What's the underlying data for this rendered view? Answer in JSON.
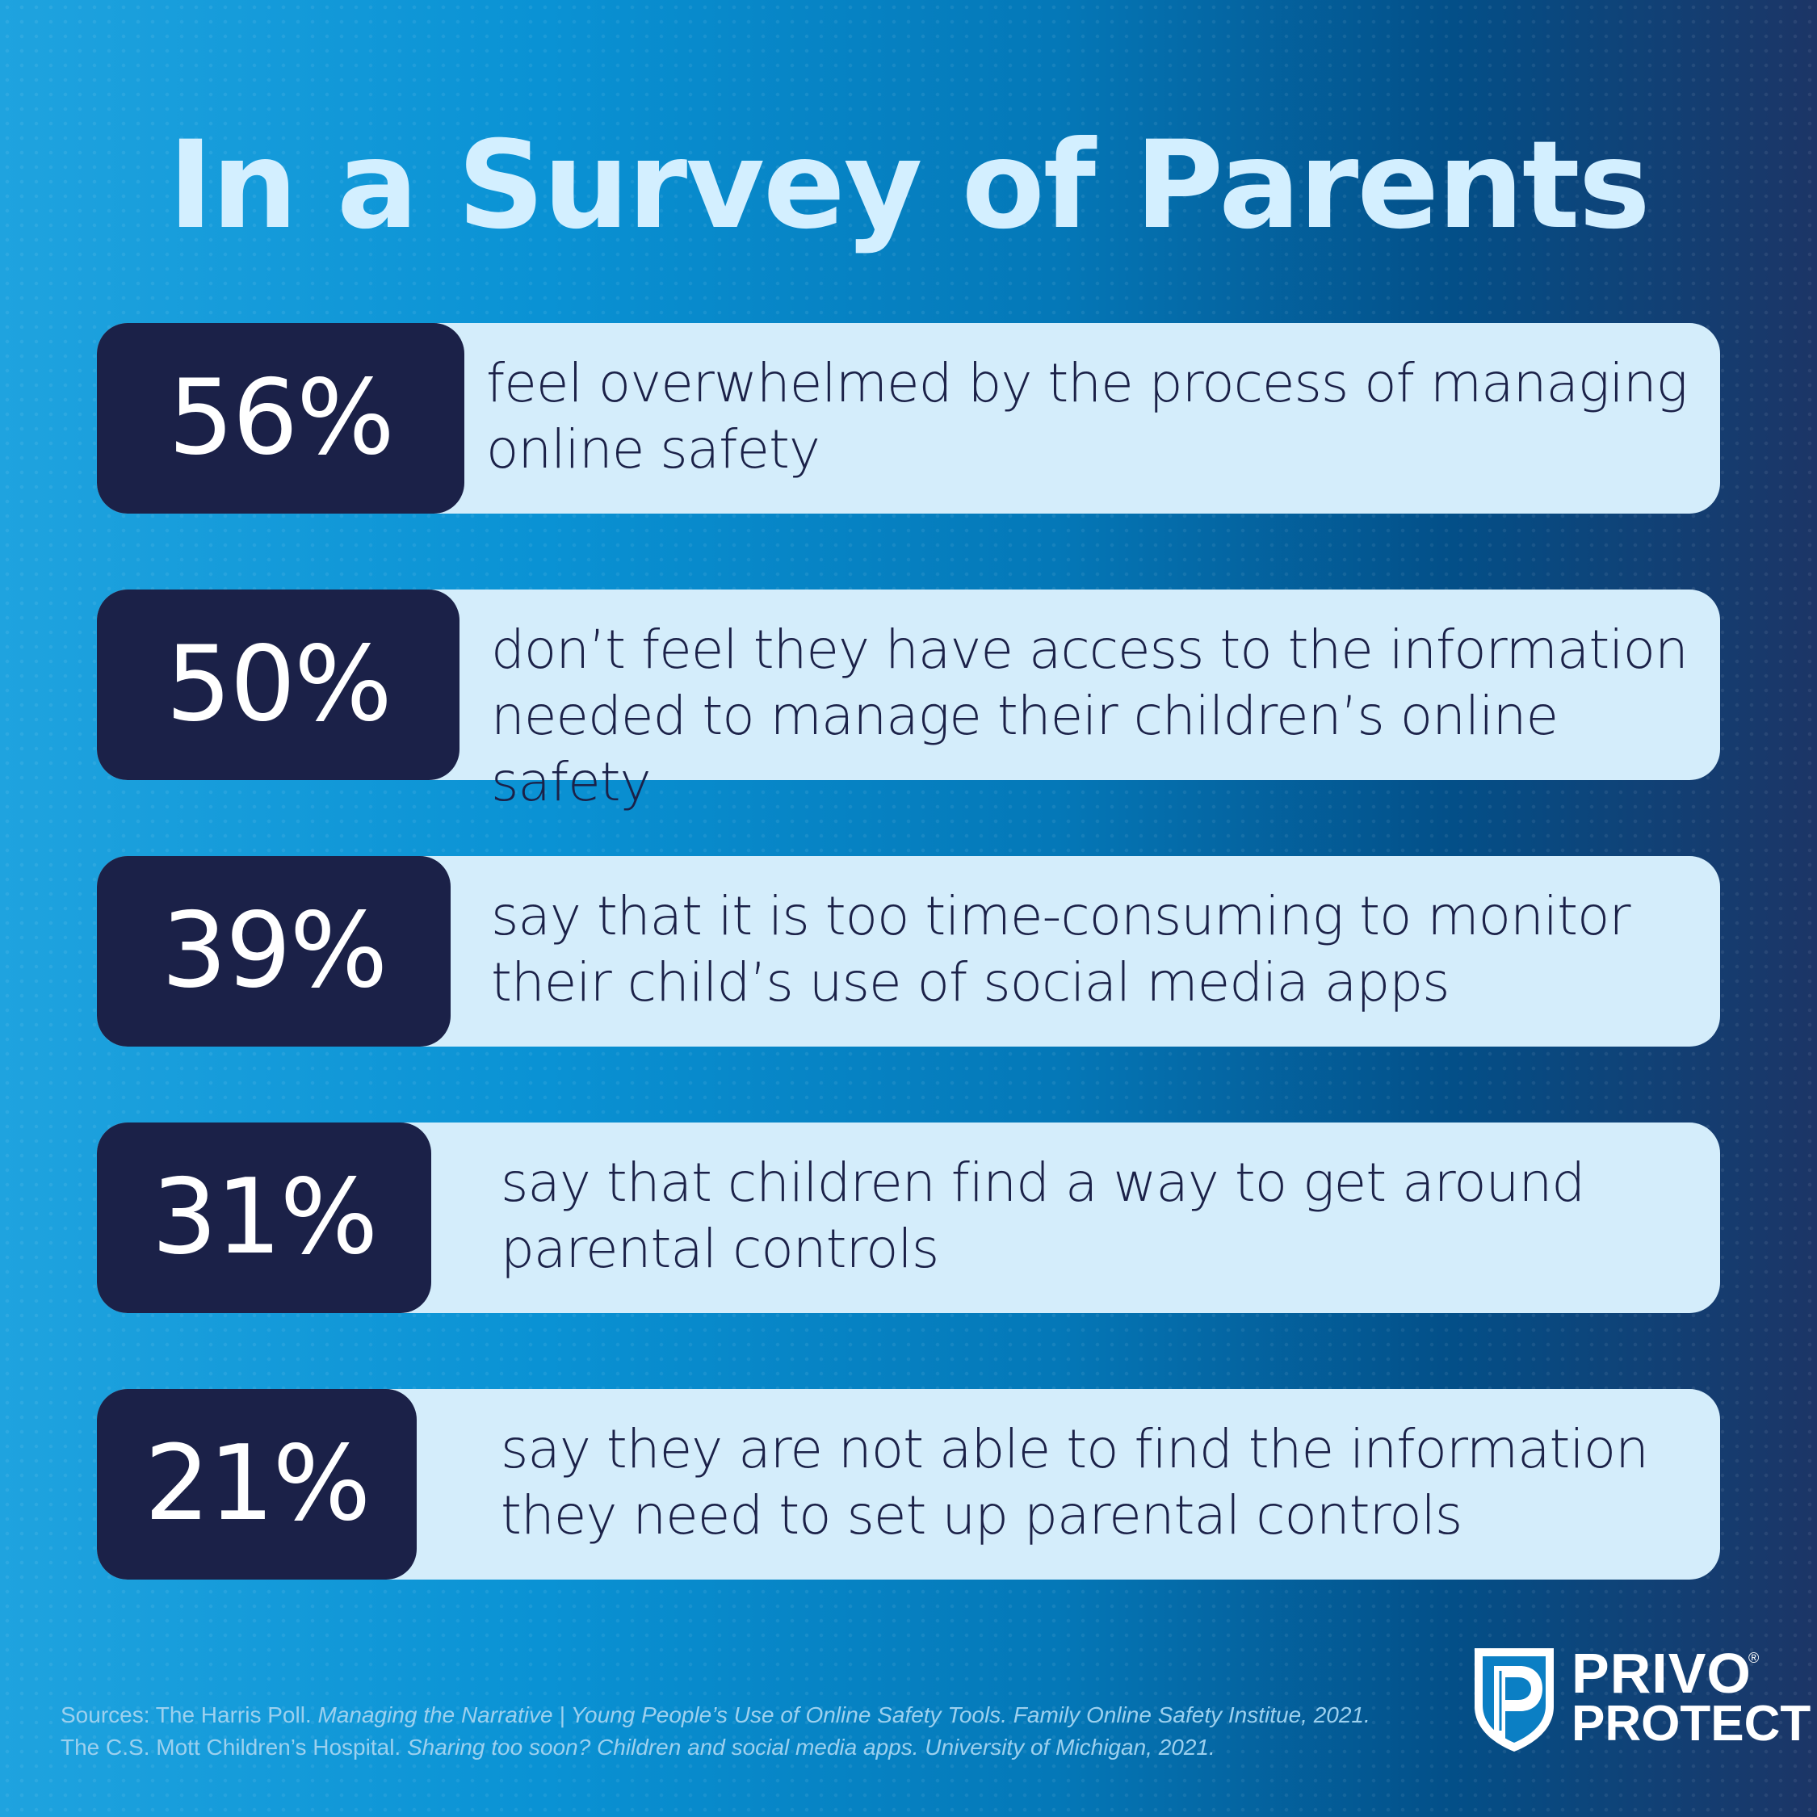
{
  "title": "In a Survey of Parents",
  "stats": [
    {
      "value": "56%",
      "line1": "feel overwhelmed by the process of managing",
      "line2": "online safety"
    },
    {
      "value": "50%",
      "line1": "don’t feel they have access to the information",
      "line2": "needed to manage their children’s online safety"
    },
    {
      "value": "39%",
      "line1": "say that it is too time-consuming to monitor",
      "line2": "their child’s use of social media apps"
    },
    {
      "value": "31%",
      "line1": "say that children find a way to get around",
      "line2": "parental controls"
    },
    {
      "value": "21%",
      "line1": "say they are not able to find the information",
      "line2": "they need to set up parental controls"
    }
  ],
  "sources": {
    "line1_a": "Sources: The Harris Poll. ",
    "line1_b": "Managing the Narrative | Young People’s Use of Online Safety Tools. Family Online Safety Institue, 2021.",
    "line2_a": "The C.S. Mott Children’s Hospital. ",
    "line2_b": "Sharing too soon? Children and social media apps. University of Michigan, 2021."
  },
  "logo": {
    "word1": "PRIVO",
    "word2": "PROTECT",
    "registered": "®"
  },
  "colors": {
    "navy": "#1b2148",
    "card": "#d4edfb",
    "title": "#d3efff"
  }
}
